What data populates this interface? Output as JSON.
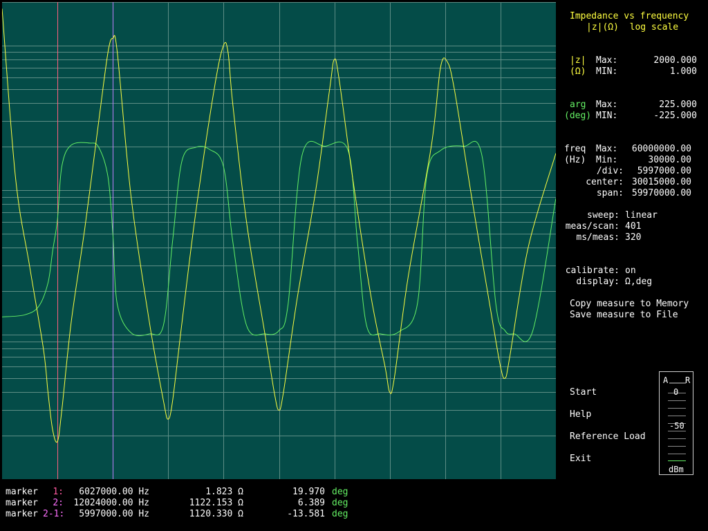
{
  "panel": {
    "title_line1": "Impedance vs frequency",
    "title_line2": "|z|(Ω)  log scale",
    "z_label": "|z|",
    "z_unit": "(Ω)",
    "z_max_label": "Max:",
    "z_max": "2000.000",
    "z_min_label": "MIN:",
    "z_min": "1.000",
    "arg_label": "arg",
    "arg_unit": "(deg)",
    "arg_max_label": "Max:",
    "arg_max": "225.000",
    "arg_min_label": "MIN:",
    "arg_min": "-225.000",
    "freq_label": "freq",
    "freq_unit": "(Hz)",
    "freq_max_label": "Max:",
    "freq_max": "60000000.00",
    "freq_min_label": "Min:",
    "freq_min": "30000.00",
    "div_label": "/div:",
    "div": "5997000.00",
    "center_label": "center:",
    "center": "30015000.00",
    "span_label": "span:",
    "span": "59970000.00",
    "sweep_label": "sweep:",
    "sweep": "linear",
    "meas_label": "meas/scan:",
    "meas": "401",
    "ms_label": "ms/meas:",
    "ms": "320",
    "calibrate_label": "calibrate:",
    "calibrate": "on",
    "display_label": "display:",
    "display": "Ω,deg",
    "copy_to_memory": "Copy measure to Memory",
    "save_to_file": "Save measure to File"
  },
  "menu": {
    "start": "Start",
    "help": "Help",
    "reference_load": "Reference Load",
    "exit": "Exit"
  },
  "meter": {
    "a": "A",
    "r": "R",
    "zero": "0",
    "minus50": "-50",
    "unit": "dBm"
  },
  "markers": [
    {
      "label": "marker",
      "id": "1:",
      "freq": "6027000.00 Hz",
      "z": "1.823 Ω",
      "arg": "19.970",
      "arg_unit": "deg"
    },
    {
      "label": "marker",
      "id": "2:",
      "freq": "12024000.00 Hz",
      "z": "1122.153 Ω",
      "arg": "6.389",
      "arg_unit": "deg"
    },
    {
      "label": "marker",
      "id": "2-1:",
      "freq": "5997000.00 Hz",
      "z": "1120.330 Ω",
      "arg": "-13.581",
      "arg_unit": "deg"
    }
  ],
  "colors": {
    "plot_bg": "#044c48",
    "grid": "#5e8e86",
    "magnitude_trace": "#ffff40",
    "phase_trace": "#64f064",
    "marker1": "#ff6080",
    "marker2": "#c080ff"
  },
  "chart_data": {
    "type": "line",
    "xlim": [
      30000,
      60000000
    ],
    "x_scale": "linear",
    "y_left_scale": "log",
    "ylim_magnitude": [
      1,
      2000
    ],
    "ylim_phase": [
      -225,
      225
    ],
    "grid": true,
    "series": [
      {
        "x": [
          30000,
          1500000,
          3000000,
          4500000,
          5000000,
          5500000,
          6027000,
          6500000,
          7500000,
          9000000,
          10500000,
          11500000,
          12024000,
          12500000,
          14000000,
          16000000,
          17500000,
          18000000,
          18500000,
          19500000,
          21000000,
          23000000,
          24000000,
          24500000,
          25000000,
          26500000,
          28500000,
          29500000,
          30000000,
          30500000,
          32000000,
          34000000,
          35500000,
          36000000,
          36500000,
          38000000,
          40000000,
          41500000,
          42000000,
          42500000,
          44000000,
          46500000,
          47500000,
          48200000,
          49000000,
          51000000,
          53000000,
          54000000,
          54500000,
          55000000,
          57000000,
          60000000
        ],
        "values": [
          1800,
          120,
          30,
          8,
          4,
          2.2,
          1.823,
          3,
          12,
          55,
          300,
          900,
          1122.153,
          900,
          90,
          12,
          3.5,
          2.6,
          3.5,
          12,
          70,
          500,
          1000,
          900,
          400,
          60,
          10,
          4,
          3,
          4,
          18,
          100,
          500,
          800,
          600,
          120,
          18,
          6,
          4,
          5,
          25,
          200,
          700,
          780,
          500,
          80,
          14,
          6,
          5,
          7,
          40,
          180
        ]
      },
      {
        "x": [
          30000,
          2500000,
          4000000,
          5000000,
          5500000,
          6027000,
          6500000,
          7500000,
          9500000,
          10500000,
          11500000,
          12024000,
          12500000,
          14000000,
          16000000,
          17500000,
          18500000,
          19500000,
          21000000,
          22500000,
          24000000,
          25000000,
          26500000,
          28500000,
          30000000,
          31000000,
          32500000,
          35000000,
          37500000,
          38500000,
          39500000,
          41000000,
          43000000,
          45000000,
          46000000,
          47500000,
          50000000,
          52000000,
          53500000,
          54500000,
          55500000,
          57500000,
          60000000
        ],
        "values": [
          -72,
          -70,
          -62,
          -40,
          -10,
          19.97,
          70,
          90,
          92,
          88,
          60,
          6.389,
          -60,
          -87,
          -88,
          -80,
          0,
          75,
          88,
          86,
          70,
          0,
          -80,
          -88,
          -85,
          -60,
          80,
          89,
          85,
          0,
          -80,
          -88,
          -86,
          -60,
          60,
          85,
          89,
          80,
          -60,
          -85,
          -88,
          -85,
          40
        ]
      }
    ],
    "markers": [
      {
        "x": 6027000,
        "magnitude": 1.823,
        "phase": 19.97
      },
      {
        "x": 12024000,
        "magnitude": 1122.153,
        "phase": 6.389
      }
    ]
  }
}
